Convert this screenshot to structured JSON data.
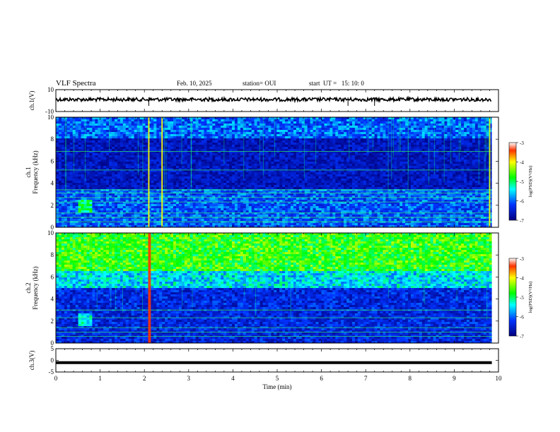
{
  "header": {
    "title": "VLF Spectra",
    "date": "Feb. 10, 2025",
    "station": "station= OUI",
    "start": "start  UT =   15: 10: 0"
  },
  "colors": {
    "spectrogram_low": "#00008a",
    "spectrogram_mid": "#00ff00",
    "spectrogram_high": "#ff0000",
    "trace": "#000000"
  },
  "chart_data": [
    {
      "type": "line",
      "panel": "ch1-waveform",
      "ylabel": "ch.1(V)",
      "ylim": [
        -10,
        10
      ],
      "yticks": [
        "10",
        "-10"
      ],
      "xlim": [
        0,
        10
      ],
      "description_values": {
        "baseline_v": 0,
        "amplitude_v": 1,
        "spikes_min": [
          2.1,
          6.6,
          7.2
        ]
      }
    },
    {
      "type": "heatmap",
      "panel": "ch1-spectrogram",
      "ylabel": "ch.1\nFrequency (kHz)",
      "ylim": [
        0,
        10
      ],
      "yticks": [
        "0",
        "2",
        "4",
        "6",
        "8",
        "10"
      ],
      "xlim": [
        0,
        10
      ],
      "colorbar": {
        "label": "log(PSD)(V²/Hz)",
        "ticks": [
          "-3",
          "-4",
          "-5",
          "-6",
          "-7"
        ],
        "range": [
          -7,
          -3
        ]
      },
      "features": {
        "bright_lines_khz": [
          0.5,
          0.9,
          1.3,
          2.3,
          2.7,
          3.1,
          3.4,
          5.2,
          6.9
        ],
        "burst_min": [
          2.1,
          2.4,
          9.8
        ],
        "hiss_center_min": 0.65,
        "hiss_center_khz": 1.9
      }
    },
    {
      "type": "heatmap",
      "panel": "ch2-spectrogram",
      "ylabel": "ch.2\nFrequency (kHz)",
      "ylim": [
        0,
        10
      ],
      "yticks": [
        "0",
        "2",
        "4",
        "6",
        "8",
        "10"
      ],
      "xlim": [
        0,
        10
      ],
      "colorbar": {
        "label": "log(PSD)(V²/Hz)",
        "ticks": [
          "-3",
          "-4",
          "-5",
          "-6",
          "-7"
        ],
        "range": [
          -7,
          -3
        ]
      },
      "features": {
        "high_band_khz": [
          6.5,
          10
        ],
        "bright_lines_khz": [
          0.6,
          1.0,
          1.4,
          2.3,
          3.0
        ],
        "burst_min": [
          2.1,
          2.13
        ]
      }
    },
    {
      "type": "line",
      "panel": "ch3-waveform",
      "ylabel": "ch.3(V)",
      "ylim": [
        -5,
        5
      ],
      "yticks": [
        "5",
        "0",
        "-5"
      ],
      "xlim": [
        0,
        10
      ],
      "xticks": [
        "0",
        "1",
        "2",
        "3",
        "4",
        "5",
        "6",
        "7",
        "8",
        "9",
        "10"
      ],
      "xlabel": "Time (min)",
      "description_values": {
        "baseline_v": -1
      }
    }
  ]
}
